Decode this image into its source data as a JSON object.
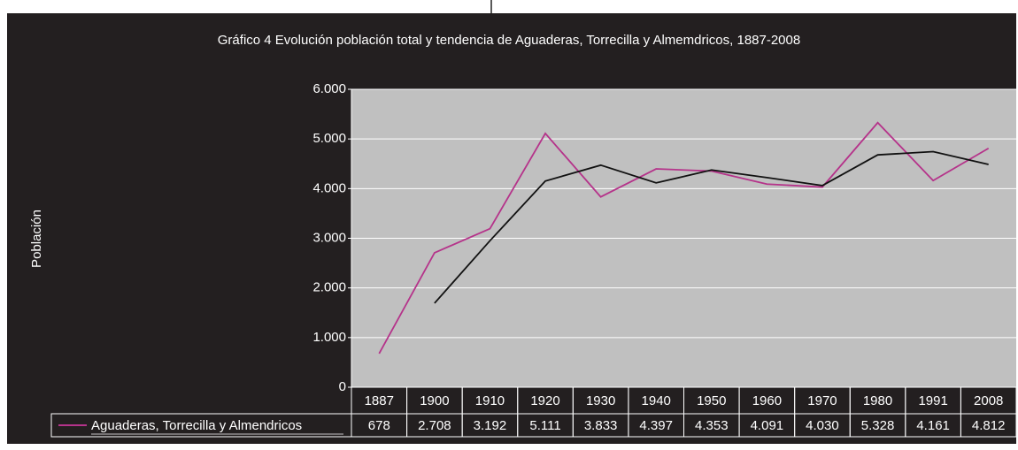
{
  "chart_data": {
    "type": "line",
    "title": "Gráfico 4 Evolución población total y tendencia de Aguaderas, Torrecilla y Almemdricos, 1887-2008",
    "y_label": "Población",
    "categories": [
      "1887",
      "1900",
      "1910",
      "1920",
      "1930",
      "1940",
      "1950",
      "1960",
      "1970",
      "1980",
      "1991",
      "2008"
    ],
    "series": [
      {
        "name": "Aguaderas, Torrecilla y Almendricos",
        "color": "#b5338a",
        "values": [
          678,
          2708,
          3192,
          5111,
          3833,
          4397,
          4353,
          4091,
          4030,
          5328,
          4161,
          4812
        ],
        "value_labels": [
          "678",
          "2.708",
          "3.192",
          "5.111",
          "3.833",
          "4.397",
          "4.353",
          "4.091",
          "4.030",
          "5.328",
          "4.161",
          "4.812"
        ]
      },
      {
        "color": "#111111",
        "values": [
          null,
          1693,
          2950,
          4152,
          4472,
          4115,
          4375,
          4222,
          4061,
          4679,
          4745,
          4487
        ]
      }
    ],
    "ylim": [
      0,
      6000
    ],
    "yticks": [
      0,
      {
        "value": 1000,
        "label": "1.000"
      },
      {
        "value": 2000,
        "label": "2.000"
      },
      {
        "value": 3000,
        "label": "3.000"
      },
      {
        "value": 4000,
        "label": "4.000"
      },
      {
        "value": 5000,
        "label": "5.000"
      },
      {
        "value": 6000,
        "label": "6.000"
      }
    ],
    "grid": true,
    "plot_background": "#c0c0c0"
  }
}
